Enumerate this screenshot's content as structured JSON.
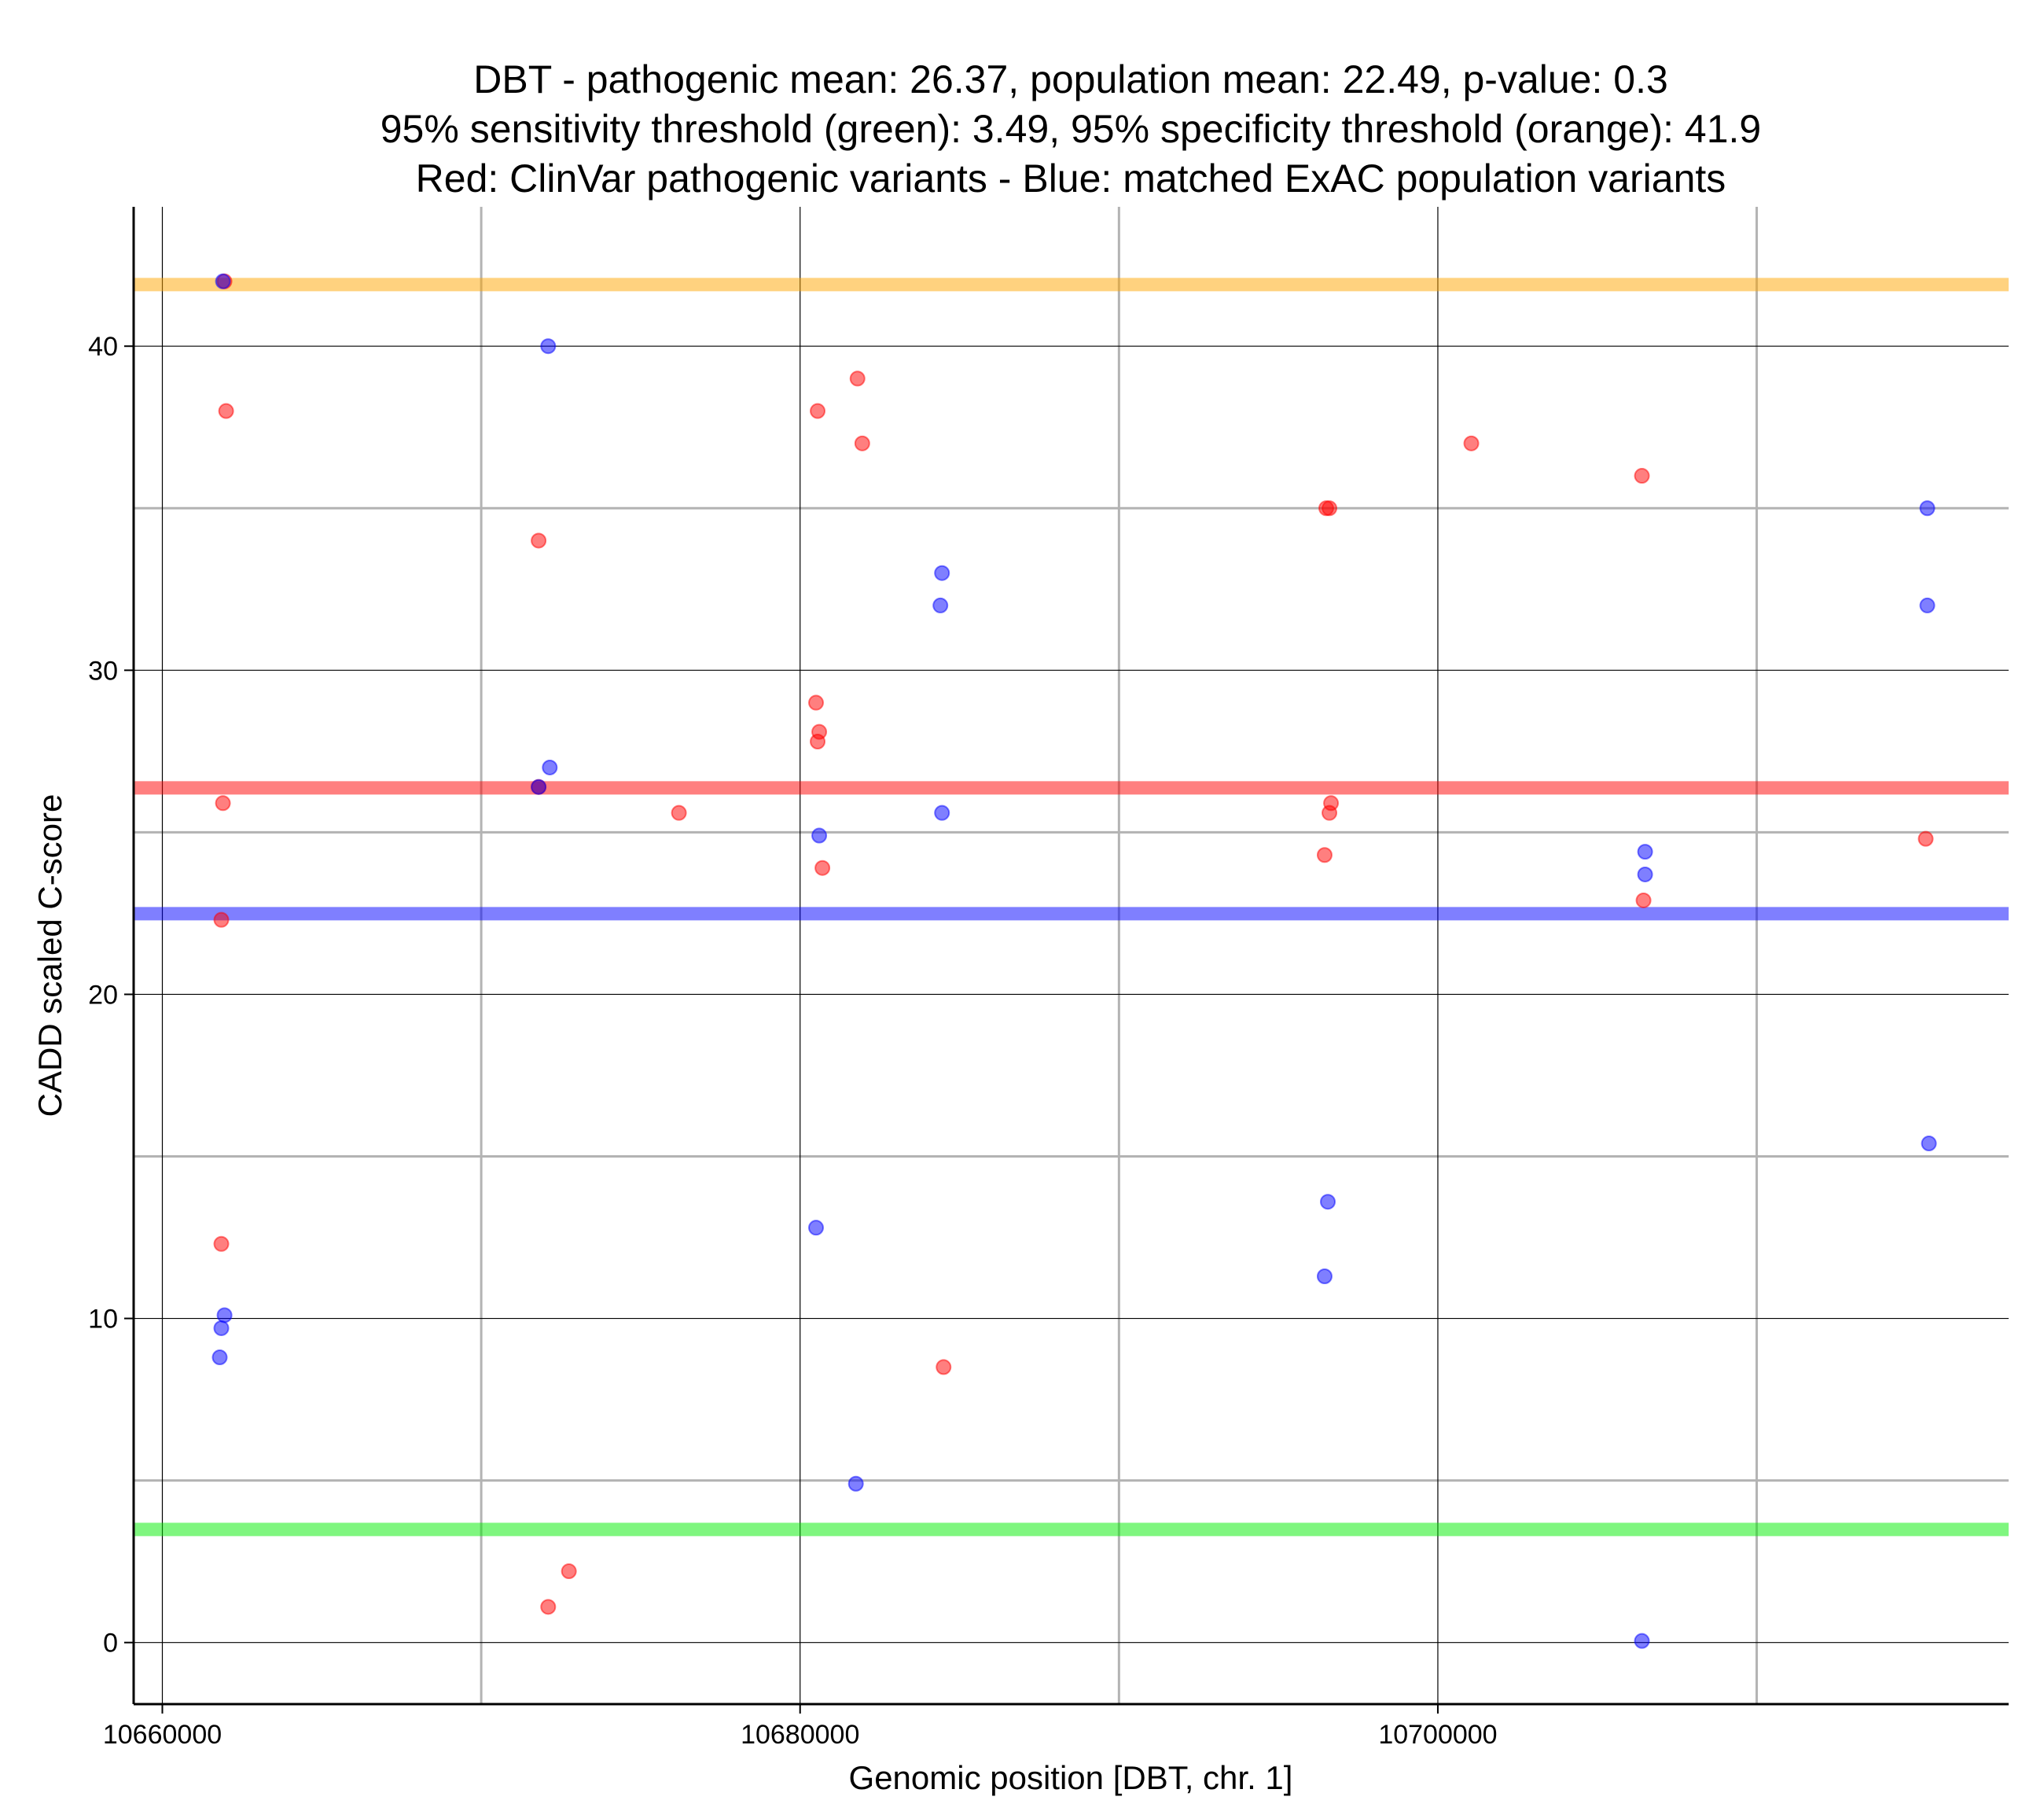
{
  "chart_data": {
    "type": "scatter",
    "title_lines": [
      "DBT - pathogenic mean: 26.37, population mean: 22.49, p-value: 0.3",
      "95% sensitivity threshold (green): 3.49, 95% specificity threshold (orange): 41.9",
      "Red: ClinVar pathogenic variants - Blue: matched ExAC population variants"
    ],
    "xlabel": "Genomic position [DBT, chr. 1]",
    "ylabel": "CADD scaled C-score",
    "xlim": [
      10659100,
      10717900
    ],
    "ylim": [
      -1.9,
      44.3
    ],
    "x_ticks": [
      10660000,
      10680000,
      10700000
    ],
    "x_tick_labels": [
      "10660000",
      "10680000",
      "10700000"
    ],
    "x_minor_gridlines": [
      10670000,
      10690000,
      10710000
    ],
    "y_ticks": [
      0,
      10,
      20,
      30,
      40
    ],
    "y_tick_labels": [
      "0",
      "10",
      "20",
      "30",
      "40"
    ],
    "y_minor_gridlines": [
      5,
      15,
      25,
      35
    ],
    "reference_lines": [
      {
        "name": "specificity-threshold",
        "value": 41.9,
        "color": "#ffa500"
      },
      {
        "name": "pathogenic-mean",
        "value": 26.37,
        "color": "#ff0000"
      },
      {
        "name": "population-mean",
        "value": 22.49,
        "color": "#0000ff"
      },
      {
        "name": "sensitivity-threshold",
        "value": 3.49,
        "color": "#00ee00"
      }
    ],
    "series": [
      {
        "name": "ClinVar pathogenic variants",
        "color": "#ff0000",
        "points": [
          [
            10661950,
            42.0
          ],
          [
            10662000,
            38.0
          ],
          [
            10661900,
            25.9
          ],
          [
            10661850,
            22.3
          ],
          [
            10661850,
            12.3
          ],
          [
            10671800,
            34.0
          ],
          [
            10671800,
            26.4
          ],
          [
            10672100,
            1.1
          ],
          [
            10672750,
            2.2
          ],
          [
            10676200,
            25.6
          ],
          [
            10680550,
            38.0
          ],
          [
            10680500,
            29.0
          ],
          [
            10680600,
            28.1
          ],
          [
            10680550,
            27.8
          ],
          [
            10680700,
            23.9
          ],
          [
            10681800,
            39.0
          ],
          [
            10681950,
            37.0
          ],
          [
            10684500,
            8.5
          ],
          [
            10696500,
            35.0
          ],
          [
            10696600,
            35.0
          ],
          [
            10696650,
            25.9
          ],
          [
            10696600,
            25.6
          ],
          [
            10696450,
            24.3
          ],
          [
            10701050,
            37.0
          ],
          [
            10706400,
            36.0
          ],
          [
            10706450,
            22.9
          ],
          [
            10715300,
            24.8
          ]
        ]
      },
      {
        "name": "matched ExAC population variants",
        "color": "#0000ff",
        "points": [
          [
            10661900,
            42.0
          ],
          [
            10661950,
            10.1
          ],
          [
            10661850,
            9.7
          ],
          [
            10661800,
            8.8
          ],
          [
            10672100,
            40.0
          ],
          [
            10672150,
            27.0
          ],
          [
            10671800,
            26.4
          ],
          [
            10680600,
            24.9
          ],
          [
            10680500,
            12.8
          ],
          [
            10681750,
            4.9
          ],
          [
            10684450,
            33.0
          ],
          [
            10684400,
            32.0
          ],
          [
            10684450,
            25.6
          ],
          [
            10696550,
            13.6
          ],
          [
            10696450,
            11.3
          ],
          [
            10706500,
            24.4
          ],
          [
            10706500,
            23.7
          ],
          [
            10706400,
            0.05
          ],
          [
            10715350,
            35.0
          ],
          [
            10715350,
            32.0
          ],
          [
            10715400,
            15.4
          ]
        ]
      }
    ]
  }
}
